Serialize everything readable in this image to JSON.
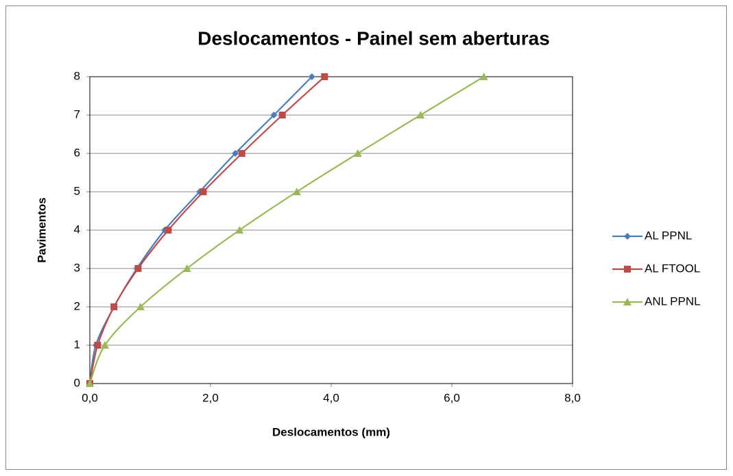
{
  "chart_data": {
    "type": "line",
    "title": "Deslocamentos - Painel sem aberturas",
    "xlabel": "Deslocamentos (mm)",
    "ylabel": "Pavimentos",
    "xlim": [
      0,
      8
    ],
    "xticks": [
      {
        "value": 0,
        "label": "0,0"
      },
      {
        "value": 2,
        "label": "2,0"
      },
      {
        "value": 4,
        "label": "4,0"
      },
      {
        "value": 6,
        "label": "6,0"
      },
      {
        "value": 8,
        "label": "8,0"
      }
    ],
    "ylim": [
      0,
      8
    ],
    "yticks": [
      0,
      1,
      2,
      3,
      4,
      5,
      6,
      7,
      8
    ],
    "grid": true,
    "legend": "right",
    "series": [
      {
        "name": "AL PPNL",
        "color": "#4a7ebb",
        "marker": "diamond",
        "x": [
          0,
          0.1,
          0.4,
          0.78,
          1.24,
          1.82,
          2.41,
          3.05,
          3.68
        ],
        "values": [
          0,
          1,
          2,
          3,
          4,
          5,
          6,
          7,
          8
        ]
      },
      {
        "name": "AL FTOOL",
        "color": "#be4b48",
        "marker": "square",
        "x": [
          0,
          0.13,
          0.4,
          0.8,
          1.3,
          1.88,
          2.52,
          3.19,
          3.89
        ],
        "values": [
          0,
          1,
          2,
          3,
          4,
          5,
          6,
          7,
          8
        ]
      },
      {
        "name": "ANL PPNL",
        "color": "#98b954",
        "marker": "triangle",
        "x": [
          0,
          0.25,
          0.84,
          1.61,
          2.48,
          3.43,
          4.44,
          5.48,
          6.53
        ],
        "values": [
          0,
          1,
          2,
          3,
          4,
          5,
          6,
          7,
          8
        ]
      }
    ]
  }
}
